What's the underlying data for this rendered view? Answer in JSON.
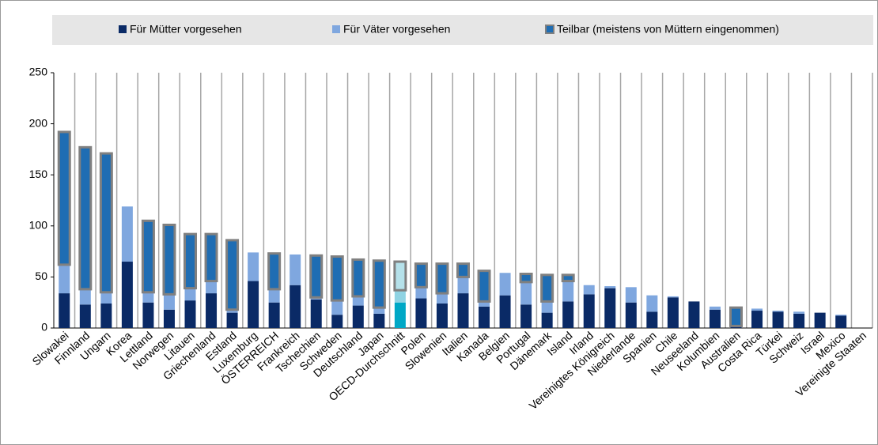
{
  "chart_data": {
    "type": "stacked_bar",
    "categories": [
      "Slowakei",
      "Finnland",
      "Ungarn",
      "Korea",
      "Lettland",
      "Norwegen",
      "Litauen",
      "Griechenland",
      "Estland",
      "Luxemburg",
      "ÖSTERREICH",
      "Frankreich",
      "Tschechien",
      "Schweden",
      "Deutschland",
      "Japan",
      "OECD-Durchschnitt",
      "Polen",
      "Slowenien",
      "Italien",
      "Kanada",
      "Belgien",
      "Portugal",
      "Dänemark",
      "Island",
      "Irland",
      "Vereinigtes Königreich",
      "Niederlande",
      "Spanien",
      "Chile",
      "Neuseeland",
      "Kolumbien",
      "Australien",
      "Costa Rica",
      "Türkei",
      "Schweiz",
      "Israel",
      "Mexico",
      "Vereinigte Staaten"
    ],
    "series": [
      {
        "name": "Für Mütter vorgesehen",
        "color": "#0a2a66",
        "values": [
          34,
          23,
          24,
          65,
          25,
          18,
          27,
          34,
          15,
          46,
          25,
          42,
          28,
          13,
          22,
          14,
          25,
          29,
          24,
          34,
          21,
          32,
          23,
          15,
          26,
          33,
          39,
          25,
          16,
          30,
          26,
          18,
          2,
          17,
          16,
          14,
          15,
          12,
          0
        ]
      },
      {
        "name": "Für Väter vorgesehen",
        "color": "#7fa7df",
        "values": [
          28,
          15,
          11,
          54,
          10,
          15,
          12,
          12,
          3,
          28,
          13,
          30,
          2,
          14,
          9,
          6,
          12,
          11,
          10,
          16,
          5,
          22,
          22,
          11,
          20,
          9,
          2,
          15,
          16,
          1,
          0,
          3,
          0,
          2,
          1,
          2,
          0,
          1,
          0
        ]
      },
      {
        "name": "Teilbar (meistens von Müttern eingenommen)",
        "color": "#1f6db3",
        "stroke": "#808080",
        "values": [
          130,
          139,
          136,
          0,
          70,
          68,
          53,
          46,
          68,
          0,
          35,
          0,
          41,
          43,
          36,
          46,
          28,
          23,
          29,
          13,
          30,
          0,
          8,
          26,
          6,
          0,
          0,
          0,
          0,
          0,
          0,
          0,
          18,
          0,
          0,
          0,
          0,
          0,
          0
        ]
      }
    ],
    "highlight": "OECD-Durchschnitt",
    "highlight_colors": [
      "#00a8c6",
      "#8fd3e3",
      "#b5e1ea"
    ],
    "ylim": [
      0,
      250
    ],
    "yticks": [
      0,
      50,
      100,
      150,
      200,
      250
    ]
  }
}
